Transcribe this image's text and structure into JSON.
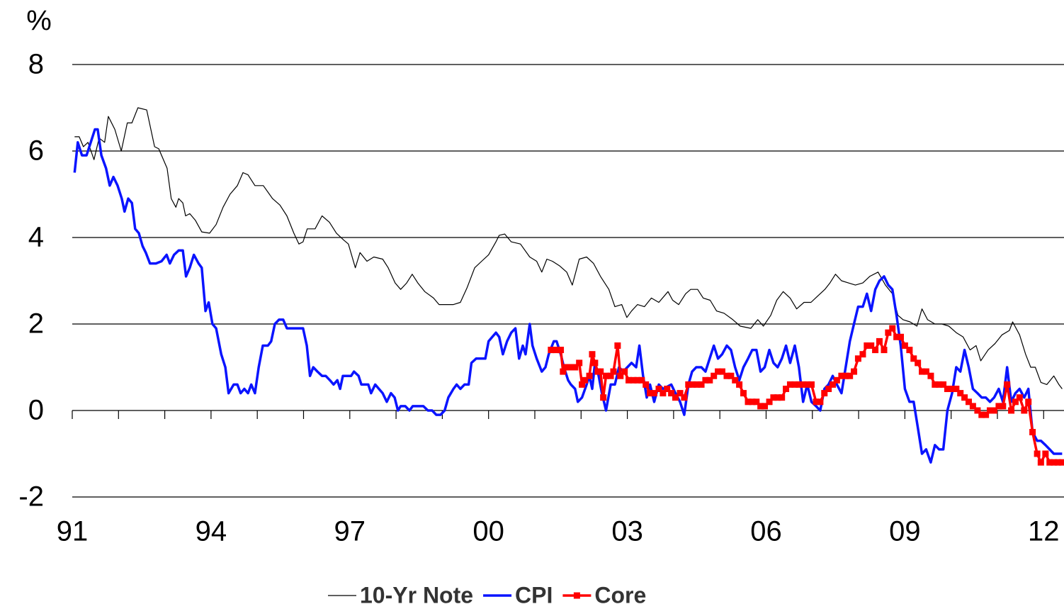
{
  "chart_data": {
    "type": "line",
    "y_label": "%",
    "xlim": [
      1991,
      2012.44
    ],
    "ylim": [
      -2,
      8
    ],
    "xticks": [
      {
        "value": 1991,
        "label": "91"
      },
      {
        "value": 1994,
        "label": "94"
      },
      {
        "value": 1997,
        "label": "97"
      },
      {
        "value": 2000,
        "label": "00"
      },
      {
        "value": 2003,
        "label": "03"
      },
      {
        "value": 2006,
        "label": "06"
      },
      {
        "value": 2009,
        "label": "09"
      },
      {
        "value": 2012,
        "label": "12"
      }
    ],
    "x_minor_ticks": [
      1992,
      1993,
      1995,
      1996,
      1998,
      1999,
      2001,
      2002,
      2004,
      2005,
      2007,
      2008,
      2010,
      2011
    ],
    "yticks": [
      -2,
      0,
      2,
      4,
      6,
      8
    ],
    "grid": true,
    "legend": "bottom",
    "series": [
      {
        "name": "10-Yr Note",
        "color": "#000000",
        "line_width": 1.2,
        "x": [
          1991.05,
          1991.15,
          1991.24,
          1991.34,
          1991.47,
          1991.58,
          1991.7,
          1991.78,
          1991.92,
          1992.06,
          1992.19,
          1992.29,
          1992.42,
          1992.61,
          1992.78,
          1992.87,
          1993.05,
          1993.14,
          1993.24,
          1993.3,
          1993.39,
          1993.45,
          1993.54,
          1993.66,
          1993.8,
          1993.97,
          1994.11,
          1994.26,
          1994.41,
          1994.57,
          1994.69,
          1994.8,
          1994.95,
          1995.13,
          1995.33,
          1995.49,
          1995.64,
          1995.79,
          1995.9,
          1995.99,
          1996.08,
          1996.25,
          1996.4,
          1996.56,
          1996.71,
          1996.86,
          1996.97,
          1997.12,
          1997.22,
          1997.37,
          1997.52,
          1997.71,
          1997.83,
          1997.98,
          1998.1,
          1998.23,
          1998.35,
          1998.47,
          1998.62,
          1998.81,
          1998.93,
          1999.08,
          1999.24,
          1999.39,
          1999.54,
          1999.7,
          1999.85,
          2000.0,
          2000.16,
          2000.23,
          2000.35,
          2000.49,
          2000.69,
          2000.89,
          2001.04,
          2001.15,
          2001.26,
          2001.38,
          2001.53,
          2001.69,
          2001.81,
          2001.96,
          2002.12,
          2002.27,
          2002.42,
          2002.6,
          2002.73,
          2002.88,
          2002.99,
          2003.09,
          2003.22,
          2003.37,
          2003.52,
          2003.68,
          2003.88,
          2003.98,
          2004.11,
          2004.26,
          2004.37,
          2004.52,
          2004.64,
          2004.79,
          2004.93,
          2005.09,
          2005.28,
          2005.44,
          2005.67,
          2005.82,
          2005.94,
          2006.1,
          2006.23,
          2006.37,
          2006.52,
          2006.66,
          2006.82,
          2006.97,
          2007.12,
          2007.27,
          2007.38,
          2007.5,
          2007.63,
          2007.78,
          2007.93,
          2008.09,
          2008.24,
          2008.42,
          2008.58,
          2008.73,
          2008.85,
          2008.96,
          2009.11,
          2009.26,
          2009.37,
          2009.49,
          2009.65,
          2009.8,
          2009.95,
          2010.11,
          2010.26,
          2010.41,
          2010.54,
          2010.64,
          2010.8,
          2010.95,
          2011.1,
          2011.26,
          2011.33,
          2011.48,
          2011.61,
          2011.72,
          2011.82,
          2011.94,
          2012.07,
          2012.22,
          2012.33,
          2012.4
        ],
        "values": [
          6.33,
          6.33,
          6.1,
          6.2,
          5.8,
          6.3,
          6.2,
          6.8,
          6.5,
          6.0,
          6.65,
          6.65,
          7.0,
          6.95,
          6.1,
          6.05,
          5.6,
          4.9,
          4.7,
          4.9,
          4.8,
          4.5,
          4.55,
          4.4,
          4.13,
          4.1,
          4.3,
          4.7,
          5.0,
          5.2,
          5.5,
          5.45,
          5.2,
          5.2,
          4.9,
          4.75,
          4.5,
          4.1,
          3.85,
          3.9,
          4.2,
          4.2,
          4.5,
          4.35,
          4.1,
          3.95,
          3.85,
          3.3,
          3.65,
          3.45,
          3.55,
          3.5,
          3.3,
          2.95,
          2.8,
          2.95,
          3.15,
          2.95,
          2.75,
          2.6,
          2.45,
          2.45,
          2.45,
          2.5,
          2.85,
          3.3,
          3.45,
          3.6,
          3.9,
          4.05,
          4.08,
          3.9,
          3.85,
          3.55,
          3.45,
          3.2,
          3.5,
          3.45,
          3.35,
          3.2,
          2.9,
          3.5,
          3.55,
          3.4,
          3.1,
          2.8,
          2.4,
          2.45,
          2.15,
          2.3,
          2.45,
          2.4,
          2.6,
          2.5,
          2.75,
          2.55,
          2.45,
          2.7,
          2.8,
          2.8,
          2.6,
          2.55,
          2.3,
          2.25,
          2.1,
          1.95,
          1.9,
          2.1,
          1.95,
          2.2,
          2.55,
          2.75,
          2.6,
          2.35,
          2.5,
          2.5,
          2.65,
          2.8,
          2.95,
          3.15,
          3.0,
          2.95,
          2.9,
          2.95,
          3.1,
          3.2,
          2.9,
          2.7,
          2.2,
          2.1,
          2.05,
          1.95,
          2.35,
          2.1,
          2.0,
          2.0,
          1.95,
          1.8,
          1.7,
          1.4,
          1.5,
          1.15,
          1.4,
          1.55,
          1.75,
          1.85,
          2.05,
          1.75,
          1.3,
          1.0,
          1.0,
          0.65,
          0.6,
          0.8,
          0.6,
          0.5
        ]
      },
      {
        "name": "CPI",
        "color": "#0a14ff",
        "line_width": 3.5,
        "x": [
          1991.05,
          1991.12,
          1991.21,
          1991.31,
          1991.4,
          1991.49,
          1991.55,
          1991.63,
          1991.73,
          1991.81,
          1991.89,
          1991.98,
          1992.07,
          1992.13,
          1992.21,
          1992.29,
          1992.36,
          1992.44,
          1992.52,
          1992.59,
          1992.68,
          1992.81,
          1992.93,
          1993.04,
          1993.11,
          1993.2,
          1993.3,
          1993.39,
          1993.46,
          1993.54,
          1993.63,
          1993.73,
          1993.8,
          1993.88,
          1993.95,
          1994.03,
          1994.11,
          1994.22,
          1994.31,
          1994.38,
          1994.49,
          1994.57,
          1994.64,
          1994.72,
          1994.8,
          1994.87,
          1994.95,
          1995.03,
          1995.12,
          1995.23,
          1995.3,
          1995.38,
          1995.47,
          1995.56,
          1995.64,
          1995.81,
          1995.99,
          1996.07,
          1996.14,
          1996.21,
          1996.3,
          1996.4,
          1996.48,
          1996.57,
          1996.65,
          1996.73,
          1996.79,
          1996.85,
          1997.03,
          1997.09,
          1997.19,
          1997.25,
          1997.4,
          1997.46,
          1997.55,
          1997.63,
          1997.71,
          1997.8,
          1997.89,
          1997.97,
          1998.04,
          1998.1,
          1998.2,
          1998.29,
          1998.36,
          1998.59,
          1998.69,
          1998.78,
          1998.87,
          1998.96,
          1999.05,
          1999.13,
          1999.24,
          1999.31,
          1999.39,
          1999.48,
          1999.57,
          1999.63,
          1999.73,
          1999.93,
          2000.0,
          2000.08,
          2000.16,
          2000.23,
          2000.31,
          2000.4,
          2000.49,
          2000.58,
          2000.66,
          2000.74,
          2000.8,
          2000.89,
          2000.95,
          2001.04,
          2001.15,
          2001.23,
          2001.3,
          2001.41,
          2001.47,
          2001.56,
          2001.63,
          2001.72,
          2001.78,
          2001.87,
          2001.93,
          2002.02,
          2002.12,
          2002.18,
          2002.24,
          2002.3,
          2002.38,
          2002.45,
          2002.54,
          2002.64,
          2002.73,
          2002.82,
          2002.91,
          2003.0,
          2003.09,
          2003.19,
          2003.26,
          2003.34,
          2003.42,
          2003.49,
          2003.58,
          2003.68,
          2003.77,
          2003.95,
          2004.04,
          2004.14,
          2004.23,
          2004.32,
          2004.4,
          2004.49,
          2004.6,
          2004.69,
          2004.78,
          2004.87,
          2004.96,
          2005.05,
          2005.15,
          2005.24,
          2005.33,
          2005.42,
          2005.51,
          2005.61,
          2005.7,
          2005.79,
          2005.88,
          2005.97,
          2006.07,
          2006.16,
          2006.25,
          2006.34,
          2006.43,
          2006.52,
          2006.62,
          2006.71,
          2006.8,
          2006.89,
          2006.98,
          2007.08,
          2007.17,
          2007.26,
          2007.35,
          2007.44,
          2007.53,
          2007.63,
          2007.72,
          2007.81,
          2007.9,
          2007.99,
          2008.09,
          2008.18,
          2008.27,
          2008.36,
          2008.45,
          2008.55,
          2008.64,
          2008.73,
          2008.82,
          2008.91,
          2009.0,
          2009.1,
          2009.19,
          2009.28,
          2009.37,
          2009.46,
          2009.56,
          2009.65,
          2009.74,
          2009.83,
          2009.92,
          2010.02,
          2010.11,
          2010.2,
          2010.29,
          2010.38,
          2010.47,
          2010.57,
          2010.66,
          2010.75,
          2010.84,
          2010.93,
          2011.03,
          2011.12,
          2011.21,
          2011.3,
          2011.39,
          2011.48,
          2011.58,
          2011.67,
          2011.76,
          2011.86,
          2011.94,
          2012.04,
          2012.13,
          2012.22,
          2012.4
        ],
        "values": [
          5.5,
          6.2,
          5.9,
          5.9,
          6.2,
          6.5,
          6.5,
          5.9,
          5.6,
          5.2,
          5.4,
          5.2,
          4.9,
          4.6,
          4.9,
          4.8,
          4.2,
          4.1,
          3.8,
          3.65,
          3.4,
          3.4,
          3.45,
          3.6,
          3.4,
          3.6,
          3.7,
          3.7,
          3.1,
          3.3,
          3.6,
          3.4,
          3.3,
          2.3,
          2.5,
          2.0,
          1.9,
          1.3,
          1.0,
          0.4,
          0.6,
          0.6,
          0.4,
          0.5,
          0.4,
          0.6,
          0.4,
          1.0,
          1.5,
          1.5,
          1.6,
          2.0,
          2.1,
          2.1,
          1.9,
          1.9,
          1.9,
          1.5,
          0.8,
          1.0,
          0.9,
          0.8,
          0.8,
          0.7,
          0.6,
          0.7,
          0.5,
          0.8,
          0.8,
          0.9,
          0.8,
          0.6,
          0.6,
          0.4,
          0.6,
          0.5,
          0.4,
          0.2,
          0.4,
          0.3,
          0,
          0.1,
          0.1,
          0,
          0.1,
          0.1,
          0,
          0,
          -0.1,
          -0.1,
          0,
          0.3,
          0.5,
          0.6,
          0.5,
          0.6,
          0.6,
          1.1,
          1.2,
          1.2,
          1.6,
          1.7,
          1.8,
          1.7,
          1.3,
          1.6,
          1.8,
          1.9,
          1.2,
          1.5,
          1.3,
          2.0,
          1.5,
          1.2,
          0.9,
          1.0,
          1.3,
          1.6,
          1.6,
          1.3,
          1.0,
          0.7,
          0.6,
          0.5,
          0.2,
          0.3,
          0.6,
          0.8,
          0.5,
          1.1,
          0.8,
          0.4,
          0.0,
          0.6,
          0.6,
          1.0,
          0.9,
          1.0,
          1.1,
          1.0,
          1.5,
          0.8,
          0.3,
          0.6,
          0.2,
          0.6,
          0.5,
          0.6,
          0.4,
          0.2,
          -0.1,
          0.6,
          0.9,
          1.0,
          1.0,
          0.9,
          1.2,
          1.5,
          1.2,
          1.3,
          1.5,
          1.4,
          1.0,
          0.7,
          1.0,
          1.2,
          1.4,
          1.4,
          0.9,
          1.0,
          1.4,
          1.1,
          1.0,
          1.2,
          1.5,
          1.1,
          1.5,
          1.0,
          0.2,
          0.6,
          0.2,
          0.1,
          0.0,
          0.5,
          0.6,
          0.8,
          0.6,
          0.4,
          1.0,
          1.6,
          2.0,
          2.4,
          2.4,
          2.7,
          2.3,
          2.8,
          3.0,
          3.1,
          2.9,
          2.8,
          2.2,
          1.5,
          0.5,
          0.2,
          0.2,
          -0.4,
          -1.0,
          -0.9,
          -1.2,
          -0.8,
          -0.9,
          -0.9,
          0,
          0.4,
          1.0,
          0.9,
          1.4,
          1.0,
          0.5,
          0.4,
          0.3,
          0.3,
          0.2,
          0.3,
          0.5,
          0.2,
          1.0,
          0.2,
          0.4,
          0.5,
          0.3,
          0.5,
          -0.5,
          -0.7,
          -0.7,
          -0.8,
          -0.9,
          -1.0,
          -1.0
        ]
      },
      {
        "name": "Core",
        "color": "#ff0000",
        "line_width": 3.5,
        "marker": "square",
        "x": [
          2001.35,
          2001.46,
          2001.56,
          2001.61,
          2001.69,
          2001.78,
          2001.87,
          2001.96,
          2002.02,
          2002.08,
          2002.18,
          2002.24,
          2002.3,
          2002.36,
          2002.42,
          2002.48,
          2002.54,
          2002.64,
          2002.7,
          2002.79,
          2002.85,
          2002.94,
          2003.03,
          2003.13,
          2003.22,
          2003.31,
          2003.4,
          2003.49,
          2003.58,
          2003.68,
          2003.77,
          2003.86,
          2003.95,
          2004.04,
          2004.14,
          2004.23,
          2004.32,
          2004.41,
          2004.5,
          2004.6,
          2004.69,
          2004.78,
          2004.87,
          2004.96,
          2005.05,
          2005.15,
          2005.24,
          2005.33,
          2005.42,
          2005.51,
          2005.61,
          2005.7,
          2005.79,
          2005.88,
          2005.97,
          2006.07,
          2006.16,
          2006.25,
          2006.34,
          2006.43,
          2006.52,
          2006.62,
          2006.71,
          2006.8,
          2006.89,
          2006.98,
          2007.08,
          2007.17,
          2007.26,
          2007.35,
          2007.44,
          2007.53,
          2007.63,
          2007.72,
          2007.81,
          2007.9,
          2007.99,
          2008.09,
          2008.18,
          2008.27,
          2008.36,
          2008.45,
          2008.55,
          2008.64,
          2008.73,
          2008.82,
          2008.91,
          2009.0,
          2009.1,
          2009.19,
          2009.28,
          2009.37,
          2009.46,
          2009.56,
          2009.65,
          2009.74,
          2009.83,
          2009.92,
          2010.02,
          2010.11,
          2010.2,
          2010.29,
          2010.38,
          2010.47,
          2010.57,
          2010.66,
          2010.75,
          2010.84,
          2010.93,
          2011.03,
          2011.12,
          2011.21,
          2011.3,
          2011.39,
          2011.48,
          2011.58,
          2011.67,
          2011.76,
          2011.86,
          2011.94,
          2012.04,
          2012.13,
          2012.22,
          2012.31,
          2012.4
        ],
        "values": [
          1.4,
          1.4,
          1.4,
          0.9,
          1.0,
          1.0,
          1.0,
          1.1,
          0.6,
          0.7,
          0.8,
          1.3,
          1.1,
          0.9,
          0.9,
          0.3,
          0.8,
          0.8,
          0.9,
          1.5,
          0.8,
          0.9,
          0.7,
          0.7,
          0.7,
          0.7,
          0.6,
          0.4,
          0.4,
          0.5,
          0.4,
          0.5,
          0.4,
          0.3,
          0.4,
          0.3,
          0.6,
          0.6,
          0.6,
          0.6,
          0.7,
          0.7,
          0.8,
          0.9,
          0.9,
          0.8,
          0.8,
          0.7,
          0.6,
          0.4,
          0.2,
          0.2,
          0.2,
          0.1,
          0.1,
          0.2,
          0.3,
          0.3,
          0.3,
          0.5,
          0.6,
          0.6,
          0.6,
          0.6,
          0.6,
          0.6,
          0.2,
          0.2,
          0.4,
          0.5,
          0.6,
          0.7,
          0.8,
          0.8,
          0.8,
          0.9,
          1.2,
          1.3,
          1.5,
          1.5,
          1.4,
          1.6,
          1.4,
          1.8,
          1.9,
          1.7,
          1.7,
          1.5,
          1.4,
          1.2,
          1.1,
          0.9,
          0.9,
          0.8,
          0.6,
          0.6,
          0.6,
          0.5,
          0.5,
          0.5,
          0.4,
          0.3,
          0.2,
          0.1,
          0.0,
          -0.1,
          -0.1,
          0.0,
          0.0,
          0.1,
          0.1,
          0.6,
          0.0,
          0.2,
          0.3,
          0.0,
          0.2,
          -0.5,
          -1.0,
          -1.2,
          -1.0,
          -1.2,
          -1.2,
          -1.2,
          -1.2
        ]
      }
    ]
  }
}
